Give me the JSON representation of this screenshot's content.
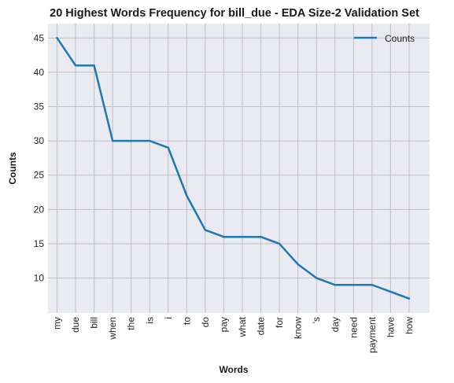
{
  "chart_data": {
    "type": "line",
    "title": "20 Highest Words Frequency for bill_due - EDA Size-2 Validation Set",
    "xlabel": "Words",
    "ylabel": "Counts",
    "categories": [
      "my",
      "due",
      "bill",
      "when",
      "the",
      "is",
      "i",
      "to",
      "do",
      "pay",
      "what",
      "date",
      "for",
      "know",
      "'s",
      "day",
      "need",
      "payment",
      "have",
      "how"
    ],
    "series": [
      {
        "name": "Counts",
        "values": [
          45,
          41,
          41,
          30,
          30,
          30,
          29,
          22,
          17,
          16,
          16,
          16,
          15,
          12,
          10,
          9,
          9,
          9,
          8,
          7
        ],
        "color": "#1f77b4"
      }
    ],
    "ylim": [
      4.9,
      47.1
    ],
    "yticks": [
      10,
      15,
      20,
      25,
      30,
      35,
      40,
      45
    ],
    "grid": true,
    "legend": "top-right",
    "background": "#eaeaf2",
    "grid_color": "#c0c0c0"
  }
}
